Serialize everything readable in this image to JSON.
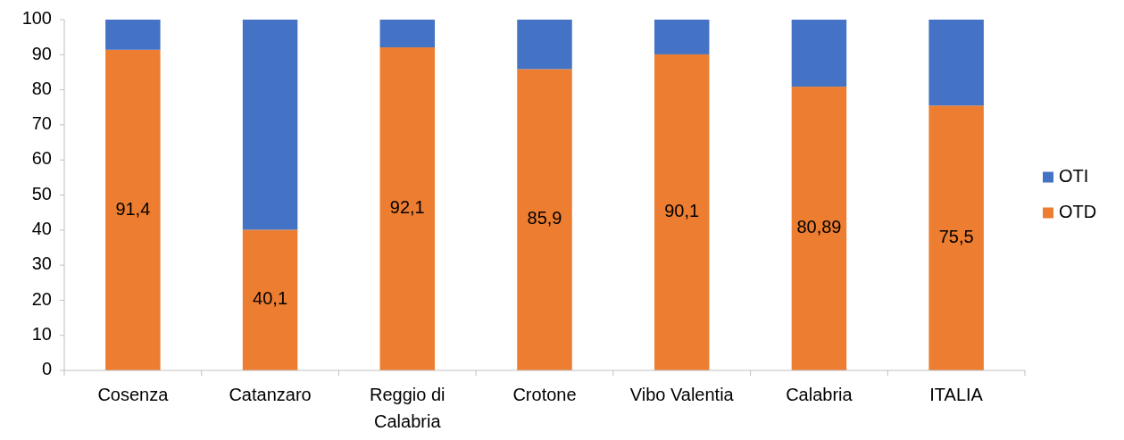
{
  "chart_data": {
    "type": "bar",
    "stacked": true,
    "categories": [
      "Cosenza",
      "Catanzaro",
      "Reggio di Calabria",
      "Crotone",
      "Vibo Valentia",
      "Calabria",
      "ITALIA"
    ],
    "series": [
      {
        "name": "OTD",
        "color": "#ed7d31",
        "values": [
          91.4,
          40.1,
          92.1,
          85.9,
          90.1,
          80.89,
          75.5
        ],
        "value_labels": [
          "91,4",
          "40,1",
          "92,1",
          "85,9",
          "90,1",
          "80,89",
          "75,5"
        ]
      },
      {
        "name": "OTI",
        "color": "#4472c4",
        "values": [
          8.6,
          59.9,
          7.9,
          14.1,
          9.9,
          19.1,
          24.5
        ]
      }
    ],
    "ylim": [
      0,
      100
    ],
    "yticks": [
      0,
      10,
      20,
      30,
      40,
      50,
      60,
      70,
      80,
      90,
      100
    ],
    "legend": "right"
  }
}
